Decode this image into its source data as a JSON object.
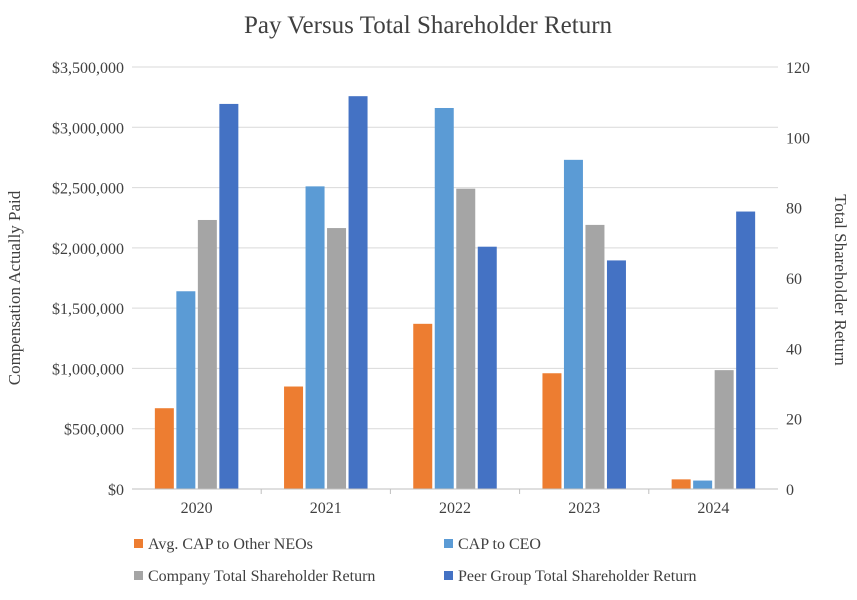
{
  "chart_data": {
    "type": "bar",
    "title": "Pay Versus Total Shareholder Return",
    "categories": [
      "2020",
      "2021",
      "2022",
      "2023",
      "2024"
    ],
    "series": [
      {
        "name": "Avg. CAP to Other NEOs",
        "axis": "left",
        "color": "#ED7D31",
        "values": [
          670000,
          850000,
          1370000,
          960000,
          80000
        ]
      },
      {
        "name": "CAP to CEO",
        "axis": "left",
        "color": "#5B9BD5",
        "values": [
          1640000,
          2510000,
          3160000,
          2730000,
          70000
        ]
      },
      {
        "name": "Company Total Shareholder Return",
        "axis": "right",
        "color": "#A5A5A5",
        "values": [
          76.5,
          74.2,
          85.4,
          75.1,
          33.8
        ]
      },
      {
        "name": "Peer Group Total Shareholder Return",
        "axis": "right",
        "color": "#4472C4",
        "values": [
          109.5,
          111.7,
          68.9,
          65.0,
          78.9
        ]
      }
    ],
    "ylabel": "Compensation Actually Paid",
    "ylim": [
      0,
      3500000
    ],
    "yticks": [
      "$0",
      "$500,000",
      "$1,000,000",
      "$1,500,000",
      "$2,000,000",
      "$2,500,000",
      "$3,000,000",
      "$3,500,000"
    ],
    "y2label": "Total Shareholder Return",
    "y2lim": [
      0,
      120
    ],
    "y2ticks": [
      "0",
      "20",
      "40",
      "60",
      "80",
      "100",
      "120"
    ],
    "grid": true,
    "legend": "bottom"
  },
  "colors": {
    "gridline": "#D9D9D9",
    "axis": "#BFBFBF",
    "text": "#404040"
  }
}
